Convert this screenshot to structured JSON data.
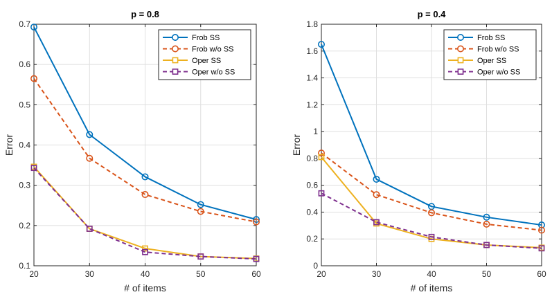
{
  "chart_data": [
    {
      "type": "line",
      "title": "p = 0.8",
      "xlabel": "# of items",
      "ylabel": "Error",
      "x": [
        20,
        30,
        40,
        50,
        60
      ],
      "xlim": [
        20,
        60
      ],
      "ylim": [
        0.1,
        0.7
      ],
      "xticks": [
        "20",
        "30",
        "40",
        "50",
        "60"
      ],
      "yticks": [
        "0.1",
        "0.2",
        "0.3",
        "0.4",
        "0.5",
        "0.6",
        "0.7"
      ],
      "yticks_values": [
        0.1,
        0.2,
        0.3,
        0.4,
        0.5,
        0.6,
        0.7
      ],
      "grid": true,
      "legend_position": "top-right",
      "series": [
        {
          "name": "Frob SS",
          "values": [
            0.693,
            0.426,
            0.321,
            0.252,
            0.215
          ],
          "color": "#0072BD",
          "dash": "solid",
          "marker": "circle"
        },
        {
          "name": "Frob w/o SS",
          "values": [
            0.565,
            0.367,
            0.277,
            0.235,
            0.209
          ],
          "color": "#D95319",
          "dash": "dashed",
          "marker": "circle"
        },
        {
          "name": "Oper SS",
          "values": [
            0.346,
            0.192,
            0.143,
            0.123,
            0.118
          ],
          "color": "#EDB120",
          "dash": "solid",
          "marker": "square"
        },
        {
          "name": "Oper w/o SS",
          "values": [
            0.343,
            0.192,
            0.134,
            0.123,
            0.117
          ],
          "color": "#7E2F8E",
          "dash": "dashed",
          "marker": "square"
        }
      ]
    },
    {
      "type": "line",
      "title": "p = 0.4",
      "xlabel": "# of items",
      "ylabel": "Error",
      "x": [
        20,
        30,
        40,
        50,
        60
      ],
      "xlim": [
        20,
        60
      ],
      "ylim": [
        0,
        1.8
      ],
      "xticks": [
        "20",
        "30",
        "40",
        "50",
        "60"
      ],
      "yticks": [
        "0",
        "0.2",
        "0.4",
        "0.6",
        "0.8",
        "1",
        "1.2",
        "1.4",
        "1.6",
        "1.8"
      ],
      "yticks_values": [
        0,
        0.2,
        0.4,
        0.6,
        0.8,
        1.0,
        1.2,
        1.4,
        1.6,
        1.8
      ],
      "grid": true,
      "legend_position": "top-right",
      "series": [
        {
          "name": "Frob SS",
          "values": [
            1.65,
            0.645,
            0.442,
            0.362,
            0.304
          ],
          "color": "#0072BD",
          "dash": "solid",
          "marker": "circle"
        },
        {
          "name": "Frob w/o SS",
          "values": [
            0.84,
            0.53,
            0.395,
            0.31,
            0.265
          ],
          "color": "#D95319",
          "dash": "dashed",
          "marker": "circle"
        },
        {
          "name": "Oper SS",
          "values": [
            0.81,
            0.315,
            0.2,
            0.155,
            0.135
          ],
          "color": "#EDB120",
          "dash": "solid",
          "marker": "square"
        },
        {
          "name": "Oper w/o SS",
          "values": [
            0.54,
            0.325,
            0.215,
            0.155,
            0.13
          ],
          "color": "#7E2F8E",
          "dash": "dashed",
          "marker": "square"
        }
      ]
    }
  ]
}
